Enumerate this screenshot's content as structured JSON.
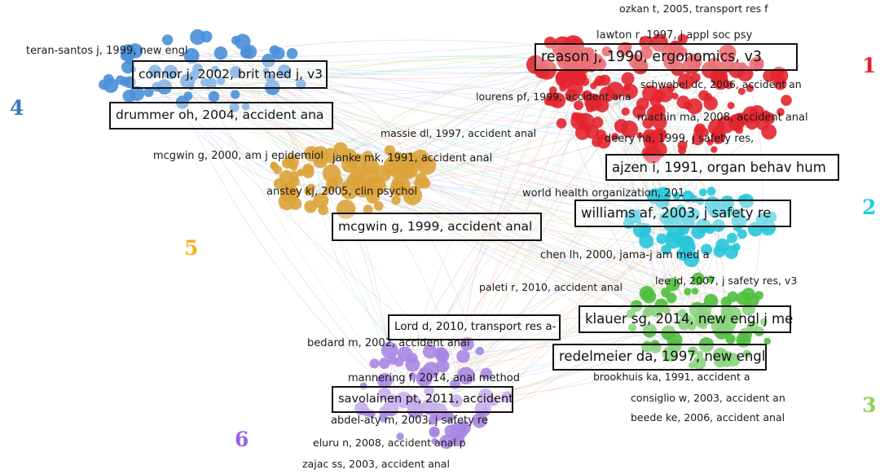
{
  "clusters": [
    {
      "number": "1",
      "color": "#e8212f"
    },
    {
      "number": "2",
      "color": "#1fd0e0"
    },
    {
      "number": "3",
      "color": "#8ed34f"
    },
    {
      "number": "4",
      "color": "#3a78bf"
    },
    {
      "number": "5",
      "color": "#f2b323"
    },
    {
      "number": "6",
      "color": "#9b62e6"
    }
  ],
  "node_colors": {
    "red": "#e3252f",
    "cyan": "#27c7da",
    "green": "#4fbf3c",
    "blue": "#4a8fd8",
    "orange": "#dba33a",
    "purple": "#a887e3"
  },
  "labels": [
    "ozkan t, 2005, transport res f",
    "lawton r, 1997, j appl soc psy",
    "schwebel dc, 2006, accident an",
    "machin ma, 2008, accident anal",
    "deery ha, 1999, j safety res,",
    "world health organization, 201",
    "chen lh, 2000, jama-j am med a",
    "lee jd, 2007, j safety res, v3",
    "paleti r, 2010, accident anal",
    "brookhuis ka, 1991, accident a",
    "consiglio w, 2003, accident an",
    "beede ke, 2006, accident anal",
    "teran-santos j, 1999, new engl",
    "lourens pf, 1999, accident ana",
    "massie dl, 1997, accident anal",
    "mcgwin g, 2000, am j epidemiol",
    "janke mk, 1991, accident anal",
    "anstey kj, 2005, clin psychol",
    "bedard m, 2002, accident anal",
    "mannering f, 2014, anal method",
    "abdel-aty m, 2003, j safety re",
    "eluru n, 2008, accident anal p",
    "zajac ss, 2003, accident anal"
  ],
  "boxed_labels": [
    "reason j, 1990, ergonomics, v3",
    "ajzen i, 1991, organ behav hum",
    "williams af, 2003, j safety re",
    "klauer sg, 2014, new engl j me",
    "redelmeier da, 1997, new engl",
    "connor j, 2002, brit med j, v3",
    "drummer oh, 2004, accident ana",
    "mcgwin g, 1999, accident anal",
    "Lord d, 2010, transport res a-",
    "savolainen pt, 2011, accident"
  ]
}
